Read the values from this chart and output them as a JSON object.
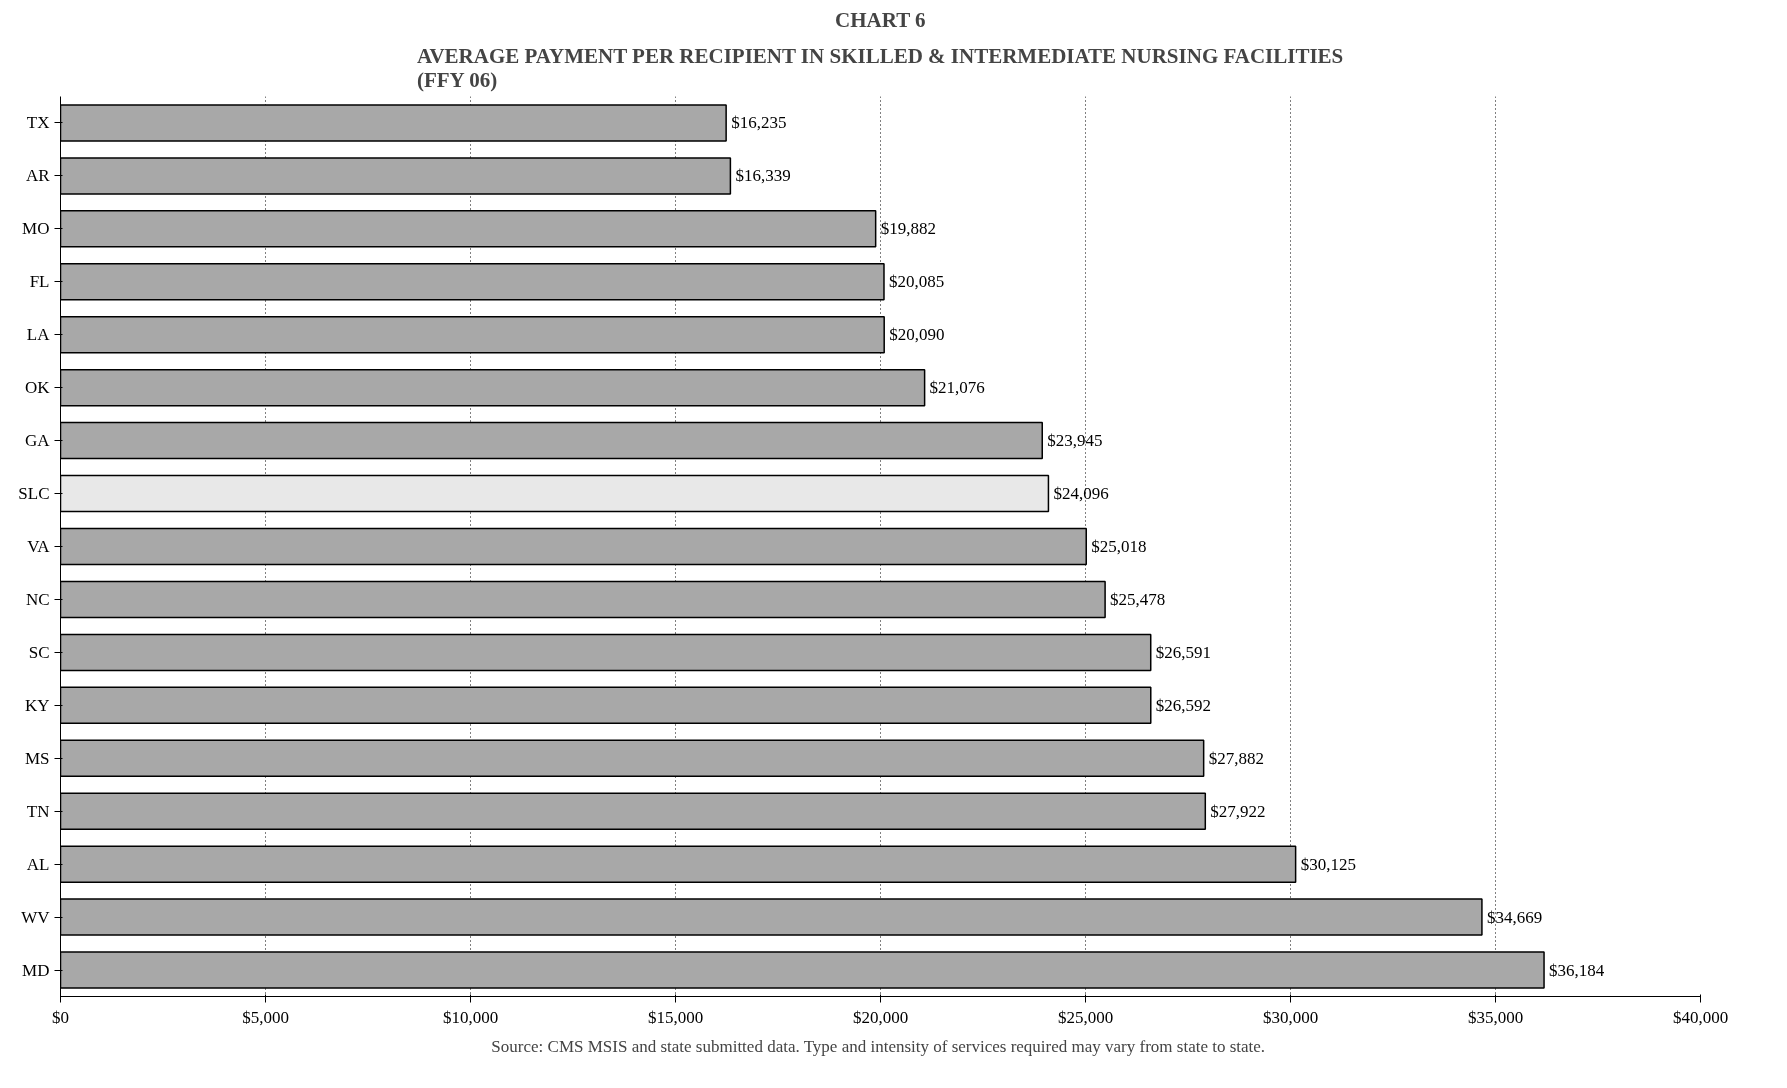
{
  "chart_data": {
    "type": "bar",
    "orientation": "horizontal",
    "title": "CHART 6",
    "subtitle": "AVERAGE PAYMENT PER RECIPIENT IN SKILLED & INTERMEDIATE NURSING FACILITIES\n(FFY 06)",
    "categories": [
      "TX",
      "AR",
      "MO",
      "FL",
      "LA",
      "OK",
      "GA",
      "SLC",
      "VA",
      "NC",
      "SC",
      "KY",
      "MS",
      "TN",
      "AL",
      "WV",
      "MD"
    ],
    "values": [
      16235,
      16339,
      19882,
      20085,
      20090,
      21076,
      23945,
      24096,
      25018,
      25478,
      26591,
      26592,
      27882,
      27922,
      30125,
      34669,
      36184
    ],
    "value_labels": [
      "$16,235",
      "$16,339",
      "$19,882",
      "$20,085",
      "$20,090",
      "$21,076",
      "$23,945",
      "$24,096",
      "$25,018",
      "$25,478",
      "$26,591",
      "$26,592",
      "$27,882",
      "$27,922",
      "$30,125",
      "$34,669",
      "$36,184"
    ],
    "colors": [
      "#a8a8a8",
      "#a8a8a8",
      "#a8a8a8",
      "#a8a8a8",
      "#a8a8a8",
      "#a8a8a8",
      "#a8a8a8",
      "#e8e8e8",
      "#a8a8a8",
      "#a8a8a8",
      "#a8a8a8",
      "#a8a8a8",
      "#a8a8a8",
      "#a8a8a8",
      "#a8a8a8",
      "#a8a8a8",
      "#a8a8a8"
    ],
    "xlim": [
      0,
      40000
    ],
    "xticks": [
      {
        "value": 0,
        "label": "$0"
      },
      {
        "value": 5000,
        "label": "$5,000"
      },
      {
        "value": 10000,
        "label": "$10,000"
      },
      {
        "value": 15000,
        "label": "$15,000"
      },
      {
        "value": 20000,
        "label": "$20,000"
      },
      {
        "value": 25000,
        "label": "$25,000"
      },
      {
        "value": 30000,
        "label": "$30,000"
      },
      {
        "value": 35000,
        "label": "$35,000"
      },
      {
        "value": 40000,
        "label": "$40,000"
      }
    ],
    "grid": "x",
    "annotations": [
      "Source: CMS MSIS and state submitted data.  Type and intensity of services required may vary from state to state."
    ]
  }
}
